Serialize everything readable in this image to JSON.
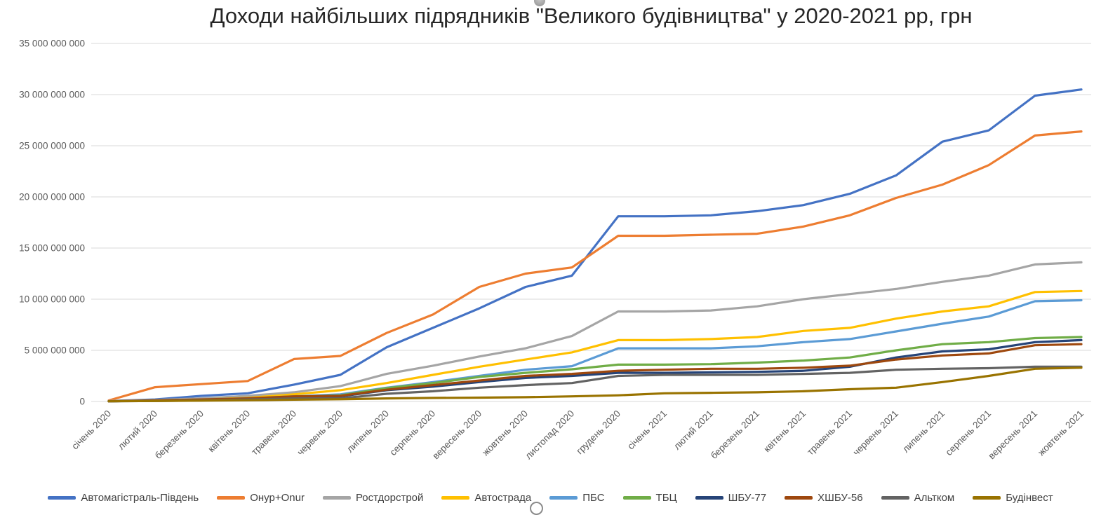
{
  "title": "Доходи найбільших підрядників \"Великого будівництва\" у 2020-2021 рр, грн",
  "axis_color": "#595959",
  "gridline_color": "#d9d9d9",
  "chart_data": {
    "type": "line",
    "title": "Доходи найбільших підрядників \"Великого будівництва\" у 2020-2021 рр, грн",
    "xlabel": "",
    "ylabel": "грн",
    "ylim": [
      0,
      35000000000
    ],
    "grid": true,
    "legend_position": "bottom",
    "y_ticks": [
      {
        "value": 0,
        "label": "0"
      },
      {
        "value": 5000000000,
        "label": "5 000 000 000"
      },
      {
        "value": 10000000000,
        "label": "10 000 000 000"
      },
      {
        "value": 15000000000,
        "label": "15 000 000 000"
      },
      {
        "value": 20000000000,
        "label": "20 000 000 000"
      },
      {
        "value": 25000000000,
        "label": "25 000 000 000"
      },
      {
        "value": 30000000000,
        "label": "30 000 000 000"
      },
      {
        "value": 35000000000,
        "label": "35 000 000 000"
      }
    ],
    "x": [
      "січень 2020",
      "лютий 2020",
      "березень 2020",
      "квітень 2020",
      "травень 2020",
      "червень 2020",
      "липень 2020",
      "серпень 2020",
      "вересень 2020",
      "жовтень 2020",
      "листопад 2020",
      "грудень 2020",
      "січень 2021",
      "лютий 2021",
      "березень 2021",
      "квітень 2021",
      "травень 2021",
      "червень 2021",
      "липень 2021",
      "серпень 2021",
      "вересень 2021",
      "жовтень 2021"
    ],
    "series": [
      {
        "name": "Автомагістраль-Південь",
        "color": "#4472C4",
        "values": [
          50000000,
          200000000,
          550000000,
          800000000,
          1650000000,
          2600000000,
          5300000000,
          7200000000,
          9100000000,
          11200000000,
          12300000000,
          18100000000,
          18100000000,
          18200000000,
          18600000000,
          19200000000,
          20300000000,
          22100000000,
          25400000000,
          26500000000,
          29900000000,
          30500000000
        ]
      },
      {
        "name": "Онур+Onur",
        "color": "#ED7D31",
        "values": [
          100000000,
          1400000000,
          1700000000,
          2000000000,
          4150000000,
          4450000000,
          6700000000,
          8500000000,
          11200000000,
          12500000000,
          13100000000,
          16200000000,
          16200000000,
          16300000000,
          16400000000,
          17100000000,
          18200000000,
          19900000000,
          21200000000,
          23100000000,
          26000000000,
          26400000000
        ]
      },
      {
        "name": "Ростдорстрой",
        "color": "#A5A5A5",
        "values": [
          50000000,
          150000000,
          300000000,
          550000000,
          900000000,
          1500000000,
          2700000000,
          3500000000,
          4400000000,
          5200000000,
          6400000000,
          8800000000,
          8800000000,
          8900000000,
          9300000000,
          10000000000,
          10500000000,
          11000000000,
          11700000000,
          12300000000,
          13400000000,
          13600000000
        ]
      },
      {
        "name": "Автострада",
        "color": "#FFC000",
        "values": [
          20000000,
          100000000,
          200000000,
          350000000,
          700000000,
          1100000000,
          1800000000,
          2600000000,
          3400000000,
          4100000000,
          4800000000,
          6000000000,
          6000000000,
          6100000000,
          6300000000,
          6900000000,
          7200000000,
          8100000000,
          8800000000,
          9300000000,
          10700000000,
          10800000000
        ]
      },
      {
        "name": "ПБС",
        "color": "#5B9BD5",
        "values": [
          20000000,
          100000000,
          200000000,
          300000000,
          500000000,
          700000000,
          1350000000,
          1900000000,
          2500000000,
          3100000000,
          3450000000,
          5200000000,
          5200000000,
          5200000000,
          5400000000,
          5800000000,
          6100000000,
          6850000000,
          7600000000,
          8300000000,
          9800000000,
          9900000000
        ]
      },
      {
        "name": "ТБЦ",
        "color": "#70AD47",
        "values": [
          20000000,
          80000000,
          150000000,
          250000000,
          450000000,
          600000000,
          1300000000,
          1800000000,
          2400000000,
          2800000000,
          3150000000,
          3600000000,
          3600000000,
          3650000000,
          3800000000,
          4000000000,
          4300000000,
          5000000000,
          5600000000,
          5800000000,
          6200000000,
          6300000000
        ]
      },
      {
        "name": "ШБУ-77",
        "color": "#264478",
        "values": [
          20000000,
          80000000,
          150000000,
          250000000,
          400000000,
          500000000,
          1100000000,
          1450000000,
          1900000000,
          2300000000,
          2500000000,
          2800000000,
          2800000000,
          2850000000,
          2900000000,
          3000000000,
          3400000000,
          4300000000,
          4900000000,
          5100000000,
          5800000000,
          6000000000
        ]
      },
      {
        "name": "ХШБУ-56",
        "color": "#9E480E",
        "values": [
          20000000,
          100000000,
          200000000,
          300000000,
          500000000,
          550000000,
          1150000000,
          1600000000,
          2050000000,
          2500000000,
          2700000000,
          3000000000,
          3100000000,
          3200000000,
          3200000000,
          3300000000,
          3500000000,
          4100000000,
          4500000000,
          4700000000,
          5500000000,
          5600000000
        ]
      },
      {
        "name": "Альтком",
        "color": "#636363",
        "values": [
          20000000,
          50000000,
          100000000,
          200000000,
          300000000,
          300000000,
          750000000,
          1000000000,
          1350000000,
          1600000000,
          1800000000,
          2500000000,
          2600000000,
          2600000000,
          2600000000,
          2700000000,
          2800000000,
          3100000000,
          3200000000,
          3250000000,
          3400000000,
          3400000000
        ]
      },
      {
        "name": "Будінвест",
        "color": "#997300",
        "values": [
          20000000,
          50000000,
          80000000,
          120000000,
          180000000,
          220000000,
          300000000,
          350000000,
          380000000,
          420000000,
          500000000,
          600000000,
          800000000,
          850000000,
          900000000,
          1000000000,
          1200000000,
          1350000000,
          1900000000,
          2500000000,
          3200000000,
          3300000000
        ]
      }
    ]
  }
}
